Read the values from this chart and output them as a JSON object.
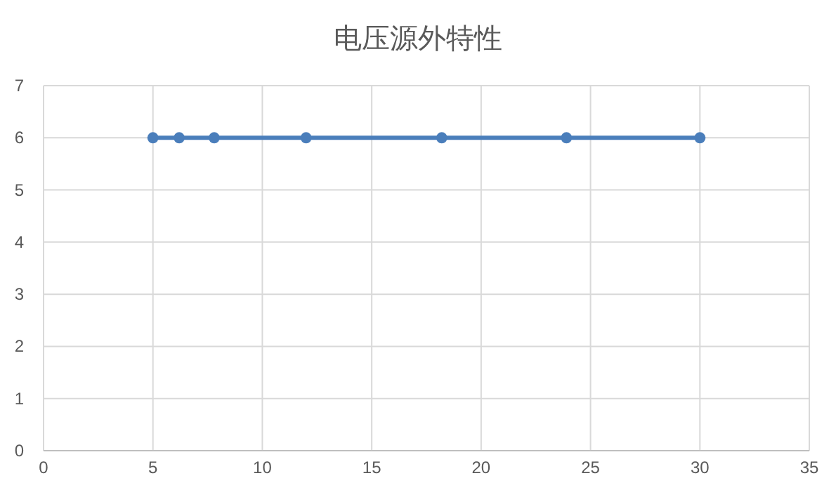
{
  "chart_data": {
    "type": "line",
    "title": "电压源外特性",
    "x": [
      5,
      6.2,
      7.8,
      12,
      18.2,
      23.9,
      30
    ],
    "series": [
      {
        "color": "#4a7ebb",
        "values": [
          6,
          6,
          6,
          6,
          6,
          6,
          6
        ]
      }
    ],
    "xlim": [
      0,
      35
    ],
    "xticks": [
      0,
      5,
      10,
      15,
      20,
      25,
      30,
      35
    ],
    "ylim": [
      0,
      7
    ],
    "yticks": [
      0,
      1,
      2,
      3,
      4,
      5,
      6,
      7
    ],
    "grid": true,
    "marker": "circle",
    "line_style": "solid"
  }
}
